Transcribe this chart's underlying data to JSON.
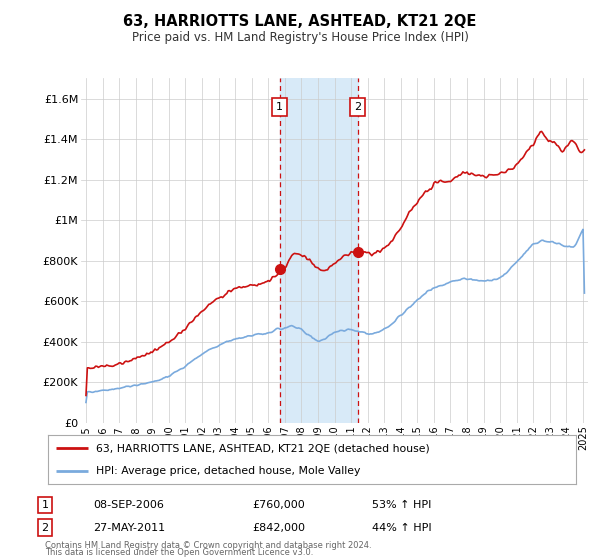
{
  "title": "63, HARRIOTTS LANE, ASHTEAD, KT21 2QE",
  "subtitle": "Price paid vs. HM Land Registry's House Price Index (HPI)",
  "background_color": "#ffffff",
  "plot_bg_color": "#ffffff",
  "grid_color": "#cccccc",
  "hpi_line_color": "#7aaadd",
  "price_line_color": "#cc1111",
  "purchase1_date_label": "08-SEP-2006",
  "purchase1_price": 760000,
  "purchase1_pct": "53%",
  "purchase2_date_label": "27-MAY-2011",
  "purchase2_price": 842000,
  "purchase2_pct": "44%",
  "purchase1_x": 2006.69,
  "purchase2_x": 2011.4,
  "ylabel_ticks": [
    "£0",
    "£200K",
    "£400K",
    "£600K",
    "£800K",
    "£1M",
    "£1.2M",
    "£1.4M",
    "£1.6M"
  ],
  "ylabel_values": [
    0,
    200000,
    400000,
    600000,
    800000,
    1000000,
    1200000,
    1400000,
    1600000
  ],
  "xlim": [
    1994.7,
    2025.3
  ],
  "ylim": [
    0,
    1700000
  ],
  "legend_label1": "63, HARRIOTTS LANE, ASHTEAD, KT21 2QE (detached house)",
  "legend_label2": "HPI: Average price, detached house, Mole Valley",
  "footer1": "Contains HM Land Registry data © Crown copyright and database right 2024.",
  "footer2": "This data is licensed under the Open Government Licence v3.0."
}
